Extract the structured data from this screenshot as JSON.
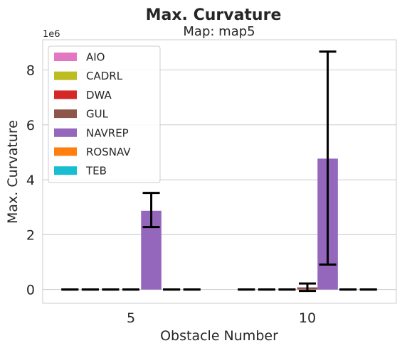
{
  "chart_data": {
    "type": "bar",
    "title": "Max. Curvature",
    "subtitle": "Map: map5",
    "xlabel": "Obstacle Number",
    "ylabel": "Max. Curvature",
    "y_offset_label": "1e6",
    "y_scale": 1000000,
    "categories": [
      "5",
      "10"
    ],
    "ylim": [
      -0.5,
      9.1
    ],
    "yticks": [
      "0",
      "2",
      "4",
      "6",
      "8"
    ],
    "legend_position": "upper-left",
    "grid": true,
    "series": [
      {
        "name": "AIO",
        "color": "#e377c2",
        "values": [
          0,
          0
        ],
        "err_low": [
          0,
          0
        ],
        "err_high": [
          0,
          0
        ]
      },
      {
        "name": "CADRL",
        "color": "#bcbd22",
        "values": [
          0,
          0
        ],
        "err_low": [
          0,
          0
        ],
        "err_high": [
          0,
          0
        ]
      },
      {
        "name": "DWA",
        "color": "#d62728",
        "values": [
          0,
          0
        ],
        "err_low": [
          0,
          0
        ],
        "err_high": [
          0,
          0
        ]
      },
      {
        "name": "GUL",
        "color": "#8c564b",
        "values": [
          0,
          0.08
        ],
        "err_low": [
          0,
          -0.05
        ],
        "err_high": [
          0,
          0.22
        ]
      },
      {
        "name": "NAVREP",
        "color": "#9467bd",
        "values": [
          2.87,
          4.77
        ],
        "err_low": [
          2.28,
          0.91
        ],
        "err_high": [
          3.52,
          8.67
        ]
      },
      {
        "name": "ROSNAV",
        "color": "#ff7f0e",
        "values": [
          0,
          0
        ],
        "err_low": [
          0,
          0
        ],
        "err_high": [
          0,
          0
        ]
      },
      {
        "name": "TEB",
        "color": "#17becf",
        "values": [
          0,
          0
        ],
        "err_low": [
          0,
          0
        ],
        "err_high": [
          0,
          0
        ]
      }
    ]
  }
}
